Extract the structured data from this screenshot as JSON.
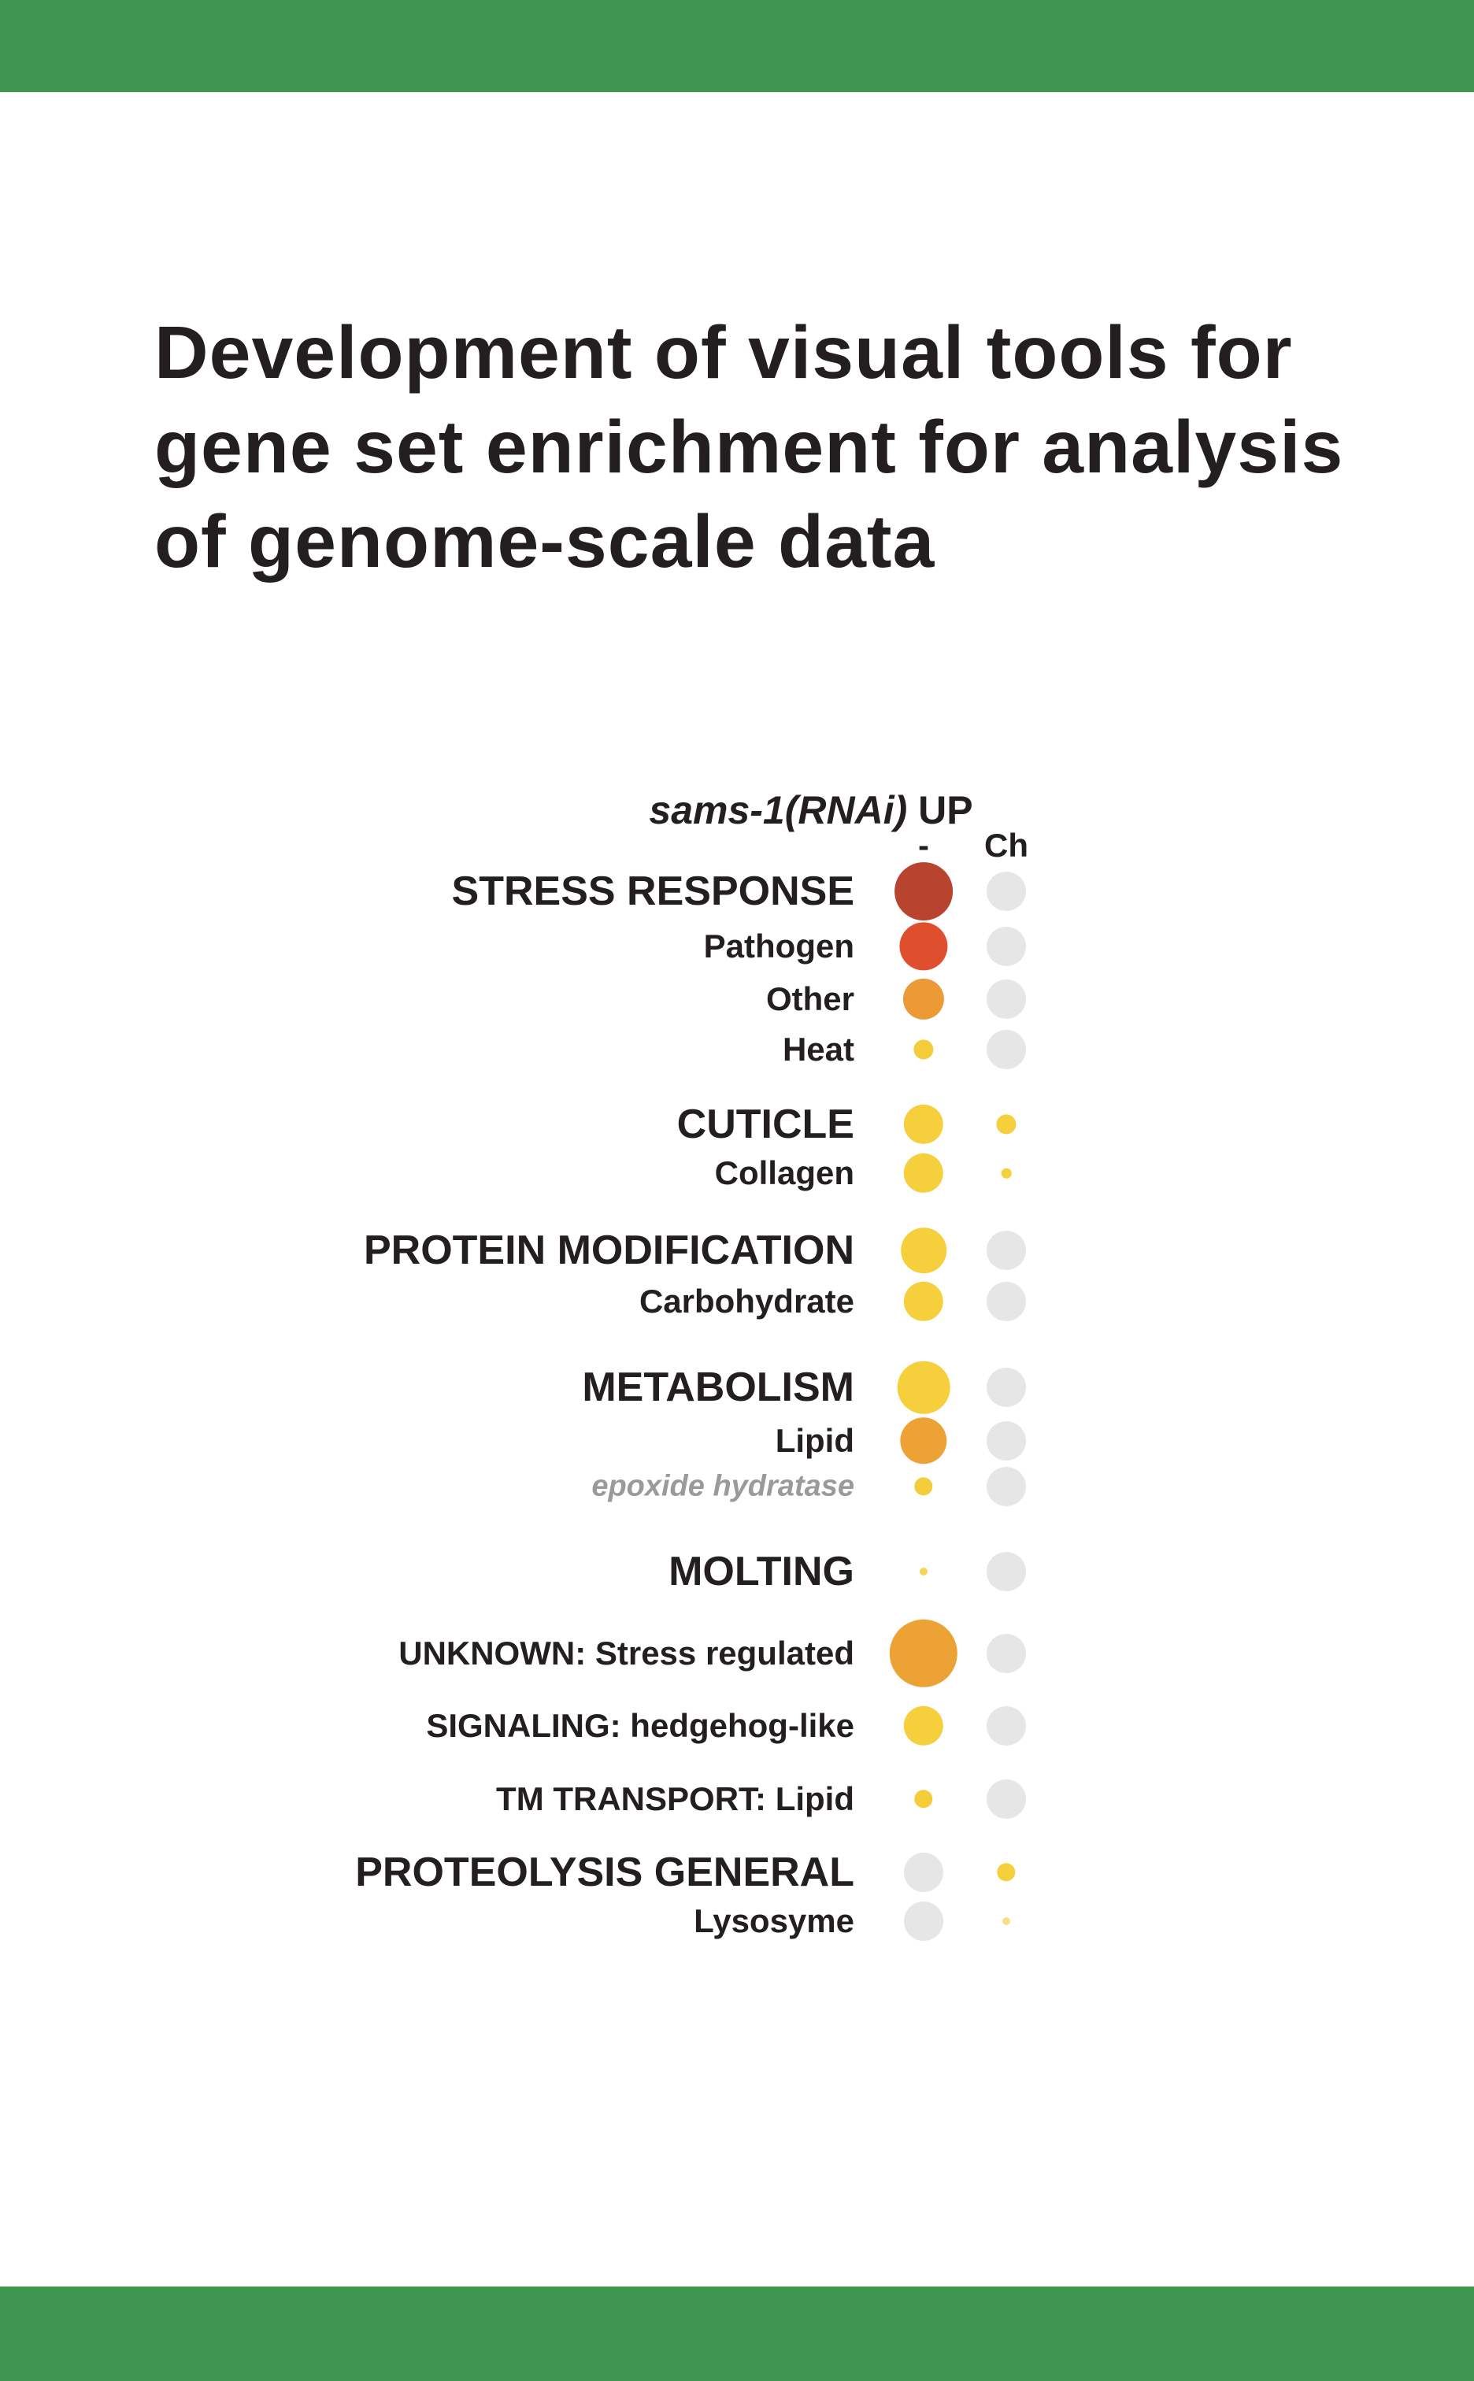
{
  "title_lines": [
    "Development of visual tools for",
    "gene set enrichment for analysis",
    "of genome-scale data"
  ],
  "colors": {
    "band": "#3e9651",
    "empty_dot": "#e6e6e6"
  },
  "chart_data": {
    "type": "scatter",
    "title_italic": "sams-1(RNAi)",
    "title_rest": " UP",
    "columns": [
      "-",
      "Ch"
    ],
    "rows": [
      {
        "label": "STRESS RESPONSE",
        "level": "major",
        "values": [
          {
            "size": 0.82,
            "color": "#b8432f"
          },
          null
        ]
      },
      {
        "label": "Pathogen",
        "level": "minor",
        "values": [
          {
            "size": 0.68,
            "color": "#df4f2e"
          },
          null
        ]
      },
      {
        "label": "Other",
        "level": "minor",
        "values": [
          {
            "size": 0.58,
            "color": "#eb9a35"
          },
          null
        ]
      },
      {
        "label": "Heat",
        "level": "minor",
        "values": [
          {
            "size": 0.28,
            "color": "#f5cc3a"
          },
          null
        ]
      },
      {
        "label": "CUTICLE",
        "level": "major",
        "values": [
          {
            "size": 0.56,
            "color": "#f6cf3c"
          },
          {
            "size": 0.28,
            "color": "#f6cf3c"
          }
        ]
      },
      {
        "label": "Collagen",
        "level": "minor",
        "values": [
          {
            "size": 0.56,
            "color": "#f6cf3c"
          },
          {
            "size": 0.14,
            "color": "#f6cf3c"
          }
        ]
      },
      {
        "label": "PROTEIN MODIFICATION",
        "level": "major",
        "values": [
          {
            "size": 0.64,
            "color": "#f6cf3c"
          },
          null
        ]
      },
      {
        "label": "Carbohydrate",
        "level": "minor",
        "values": [
          {
            "size": 0.56,
            "color": "#f6cf3c"
          },
          null
        ]
      },
      {
        "label": "METABOLISM",
        "level": "major",
        "values": [
          {
            "size": 0.74,
            "color": "#f6cf3c"
          },
          null
        ]
      },
      {
        "label": "Lipid",
        "level": "minor",
        "values": [
          {
            "size": 0.66,
            "color": "#eda236"
          },
          null
        ]
      },
      {
        "label": "epoxide hydratase",
        "level": "sub",
        "values": [
          {
            "size": 0.26,
            "color": "#f5cc3a"
          },
          null
        ]
      },
      {
        "label": "MOLTING",
        "level": "major",
        "values": [
          {
            "size": 0.11,
            "color": "#f6d35a"
          },
          null
        ]
      },
      {
        "label": "UNKNOWN: Stress regulated",
        "level": "minor",
        "values": [
          {
            "size": 0.96,
            "color": "#eda236"
          },
          null
        ]
      },
      {
        "label": "SIGNALING: hedgehog-like",
        "level": "minor",
        "values": [
          {
            "size": 0.56,
            "color": "#f6cf3c"
          },
          null
        ]
      },
      {
        "label": "TM TRANSPORT: Lipid",
        "level": "minor",
        "values": [
          {
            "size": 0.26,
            "color": "#f5cc3a"
          },
          null
        ]
      },
      {
        "label": "PROTEOLYSIS GENERAL",
        "level": "major",
        "values": [
          null,
          {
            "size": 0.26,
            "color": "#f6cf3c"
          }
        ]
      },
      {
        "label": "Lysosyme",
        "level": "minor",
        "values": [
          null,
          {
            "size": 0.06,
            "color": "#f8e08a"
          }
        ]
      }
    ]
  }
}
